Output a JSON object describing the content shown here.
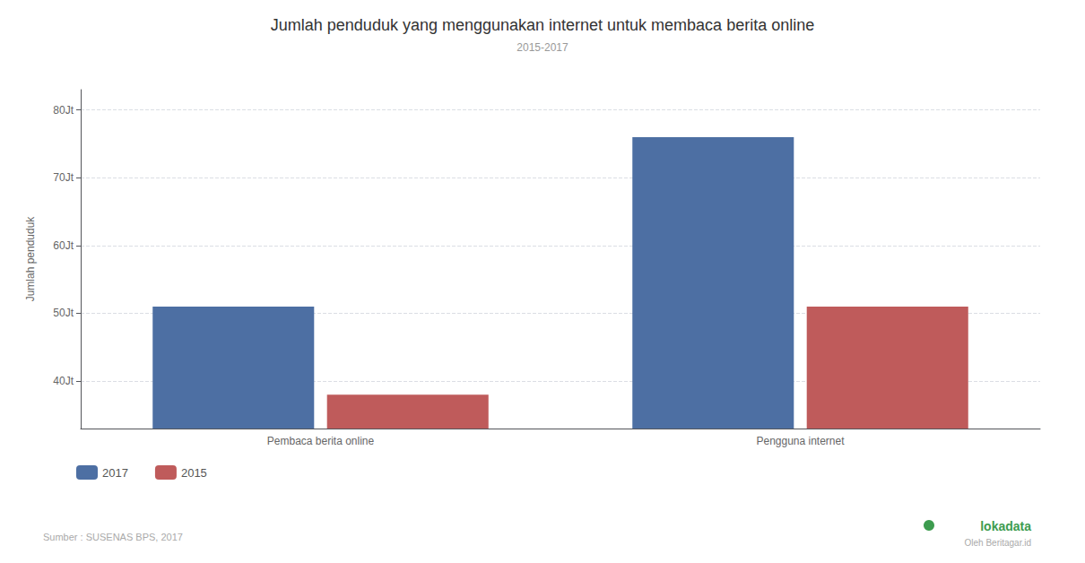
{
  "chart_data": {
    "type": "bar",
    "title": "Jumlah penduduk yang menggunakan internet untuk membaca berita online",
    "subtitle": "2015-2017",
    "categories": [
      "Pembaca berita online",
      "Pengguna internet"
    ],
    "series": [
      {
        "name": "2017",
        "color": "#4d6fa3",
        "values": [
          51,
          76
        ]
      },
      {
        "name": "2015",
        "color": "#bf5b5b",
        "values": [
          38,
          51
        ]
      }
    ],
    "ylabel": "Jumlah penduduk",
    "ylim": [
      33,
      83
    ],
    "yticks": [
      {
        "value": 40,
        "label": "40Jt"
      },
      {
        "value": 50,
        "label": "50Jt"
      },
      {
        "value": 60,
        "label": "60Jt"
      },
      {
        "value": 70,
        "label": "70Jt"
      },
      {
        "value": 80,
        "label": "80Jt"
      }
    ],
    "grid": true,
    "legend": "lower left",
    "annotations": [
      "Sumber : SUSENAS BPS, 2017",
      "lokadata",
      "Oleh Beritagar.id"
    ]
  }
}
